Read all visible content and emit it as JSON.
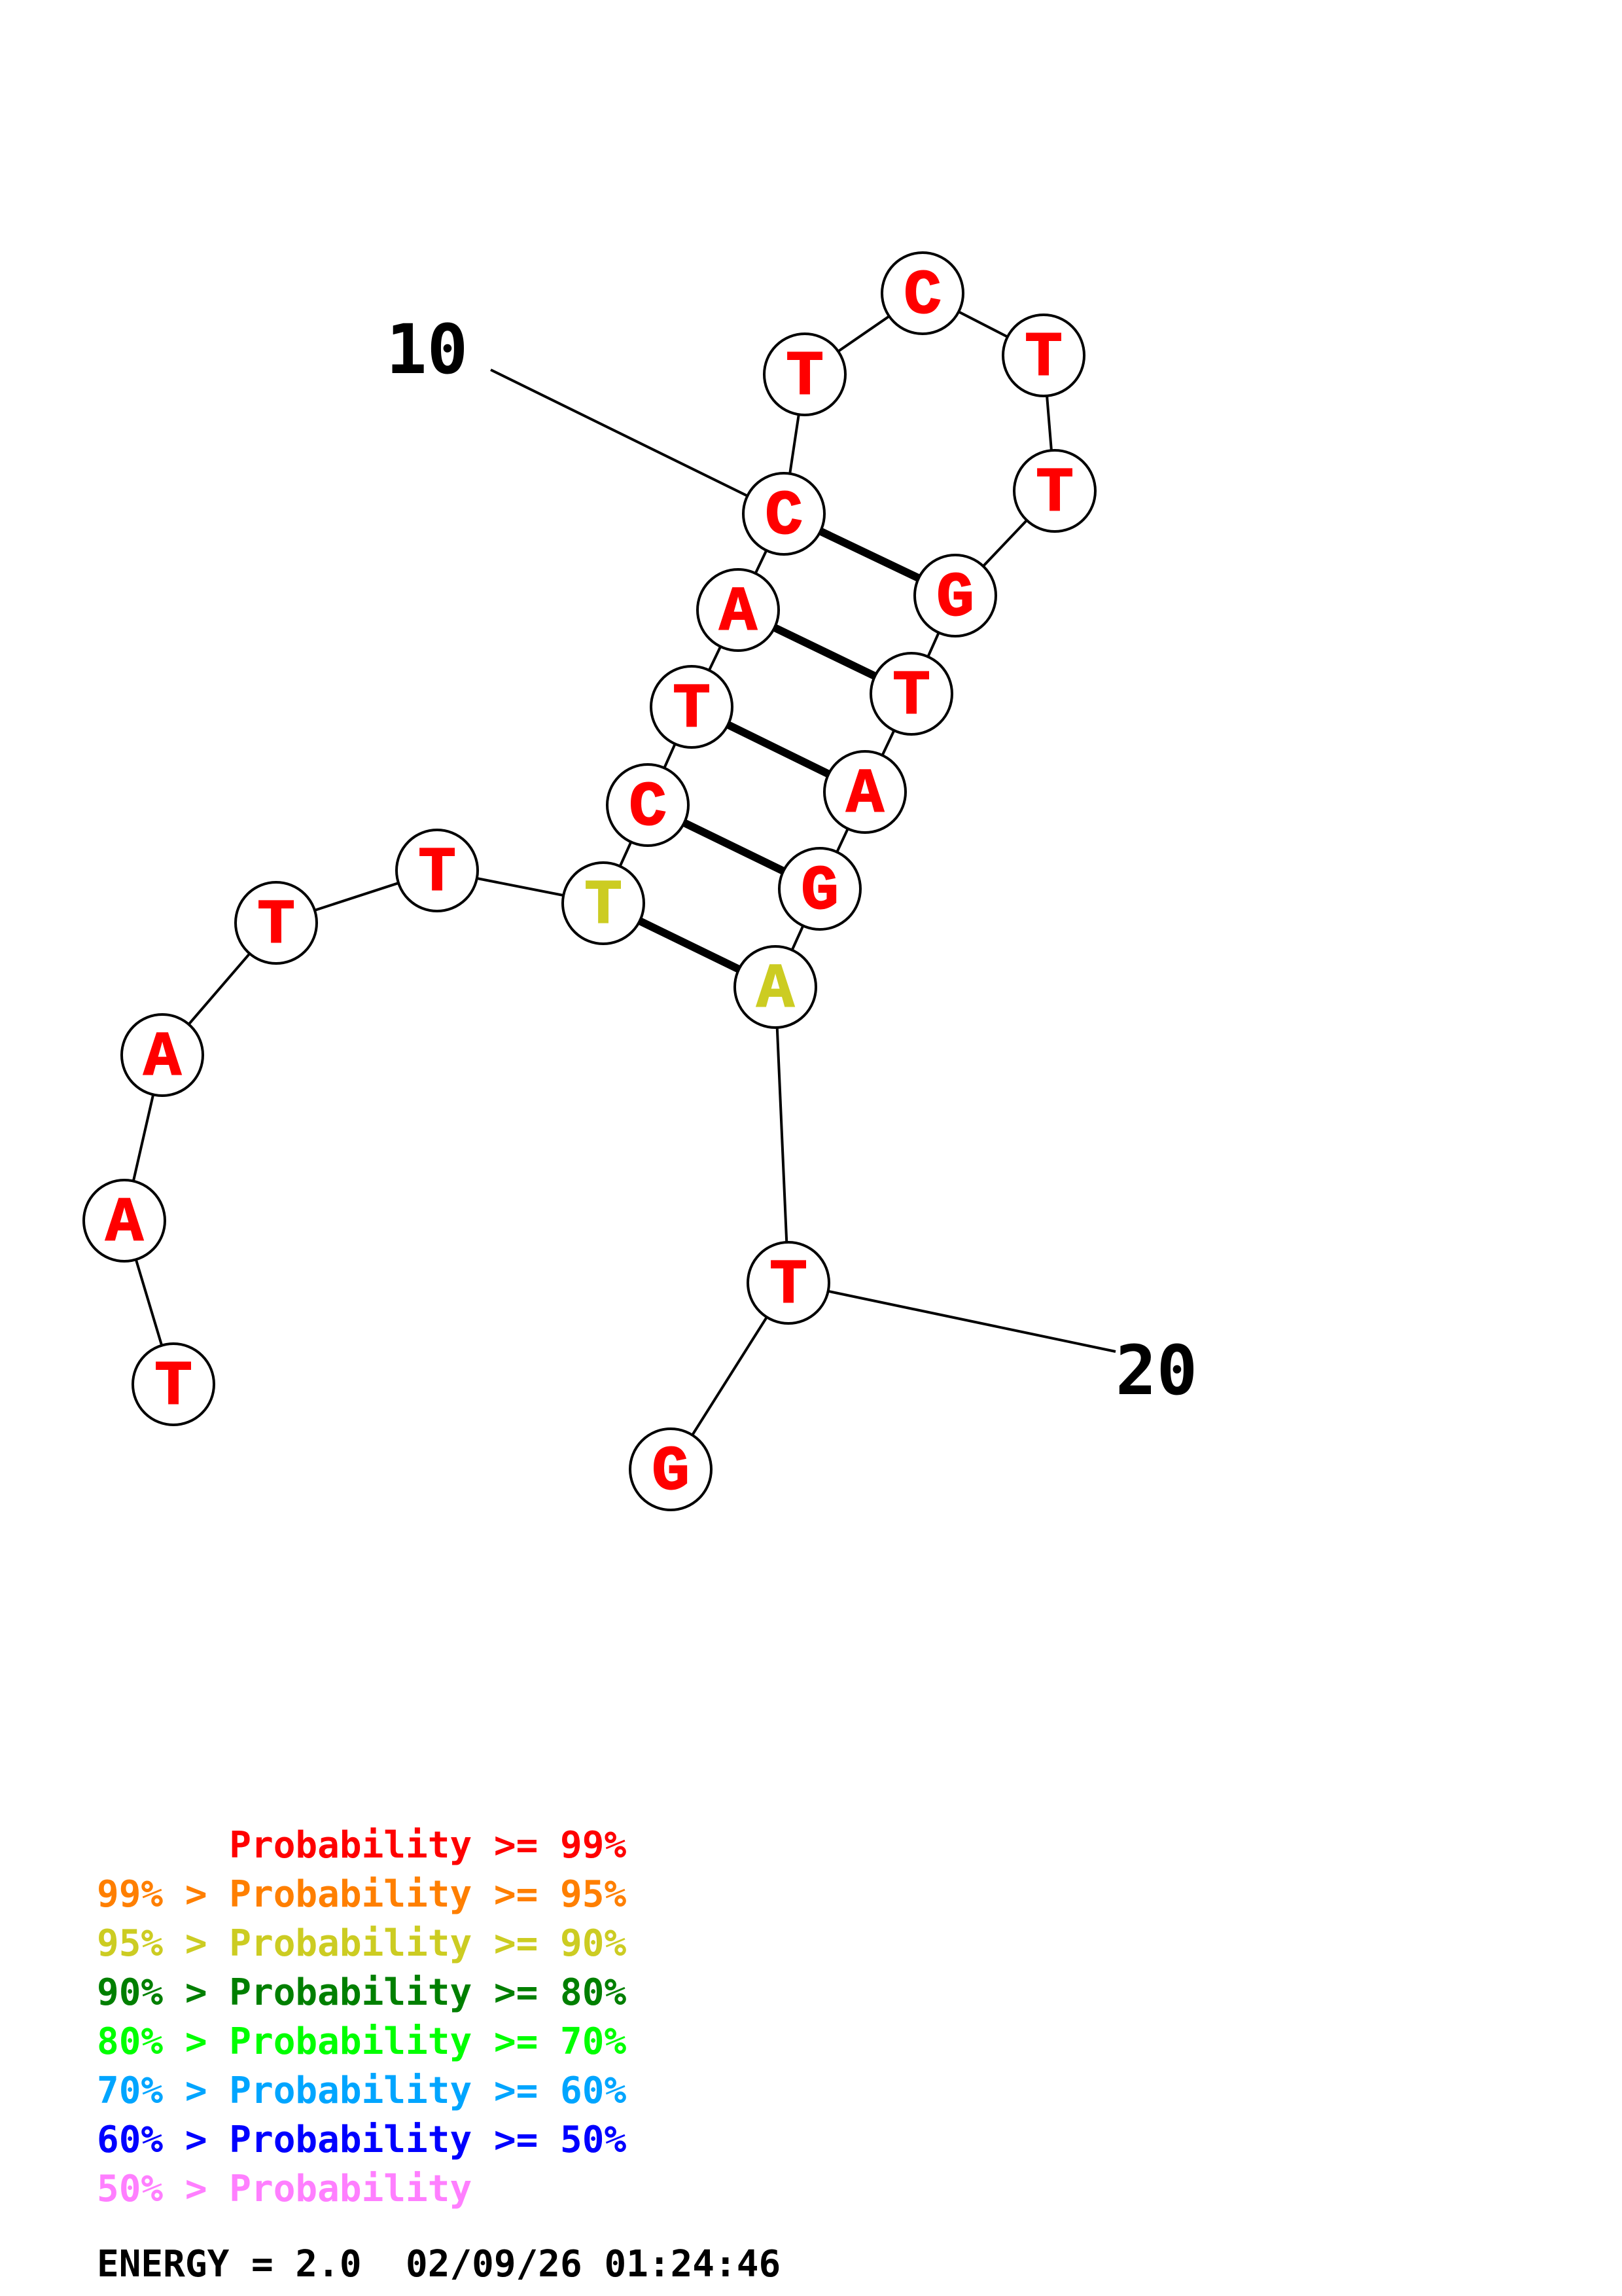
{
  "diagram": {
    "nucleotides": [
      {
        "index": 1,
        "base": "T",
        "color": "#ff0000"
      },
      {
        "index": 2,
        "base": "A",
        "color": "#ff0000"
      },
      {
        "index": 3,
        "base": "A",
        "color": "#ff0000"
      },
      {
        "index": 4,
        "base": "T",
        "color": "#ff0000"
      },
      {
        "index": 5,
        "base": "T",
        "color": "#ff0000"
      },
      {
        "index": 6,
        "base": "T",
        "color": "#cccc22"
      },
      {
        "index": 7,
        "base": "C",
        "color": "#ff0000"
      },
      {
        "index": 8,
        "base": "T",
        "color": "#ff0000"
      },
      {
        "index": 9,
        "base": "A",
        "color": "#ff0000"
      },
      {
        "index": 10,
        "base": "C",
        "color": "#ff0000"
      },
      {
        "index": 11,
        "base": "T",
        "color": "#ff0000"
      },
      {
        "index": 12,
        "base": "C",
        "color": "#ff0000"
      },
      {
        "index": 13,
        "base": "T",
        "color": "#ff0000"
      },
      {
        "index": 14,
        "base": "T",
        "color": "#ff0000"
      },
      {
        "index": 15,
        "base": "G",
        "color": "#ff0000"
      },
      {
        "index": 16,
        "base": "T",
        "color": "#ff0000"
      },
      {
        "index": 17,
        "base": "A",
        "color": "#ff0000"
      },
      {
        "index": 18,
        "base": "G",
        "color": "#ff0000"
      },
      {
        "index": 19,
        "base": "A",
        "color": "#cccc22"
      },
      {
        "index": 20,
        "base": "T",
        "color": "#ff0000"
      },
      {
        "index": 21,
        "base": "G",
        "color": "#ff0000"
      }
    ],
    "pairs": [
      [
        6,
        19
      ],
      [
        7,
        18
      ],
      [
        8,
        17
      ],
      [
        9,
        16
      ],
      [
        10,
        15
      ]
    ],
    "position_labels": [
      {
        "text": "10",
        "nucleotide": 10
      },
      {
        "text": "20",
        "nucleotide": 20
      }
    ]
  },
  "legend": [
    {
      "text": "      Probability >= 99%",
      "color": "#ff0000"
    },
    {
      "text": "99% > Probability >= 95%",
      "color": "#ff7f00"
    },
    {
      "text": "95% > Probability >= 90%",
      "color": "#cccc22"
    },
    {
      "text": "90% > Probability >= 80%",
      "color": "#007f00"
    },
    {
      "text": "80% > Probability >= 70%",
      "color": "#00ff00"
    },
    {
      "text": "70% > Probability >= 60%",
      "color": "#00a5ff"
    },
    {
      "text": "60% > Probability >= 50%",
      "color": "#0000ff"
    },
    {
      "text": "50% > Probability",
      "color": "#ff7fff"
    }
  ],
  "footer": {
    "energy_text": "ENERGY = 2.0  02/09/26 01:24:46",
    "color": "#000000"
  }
}
